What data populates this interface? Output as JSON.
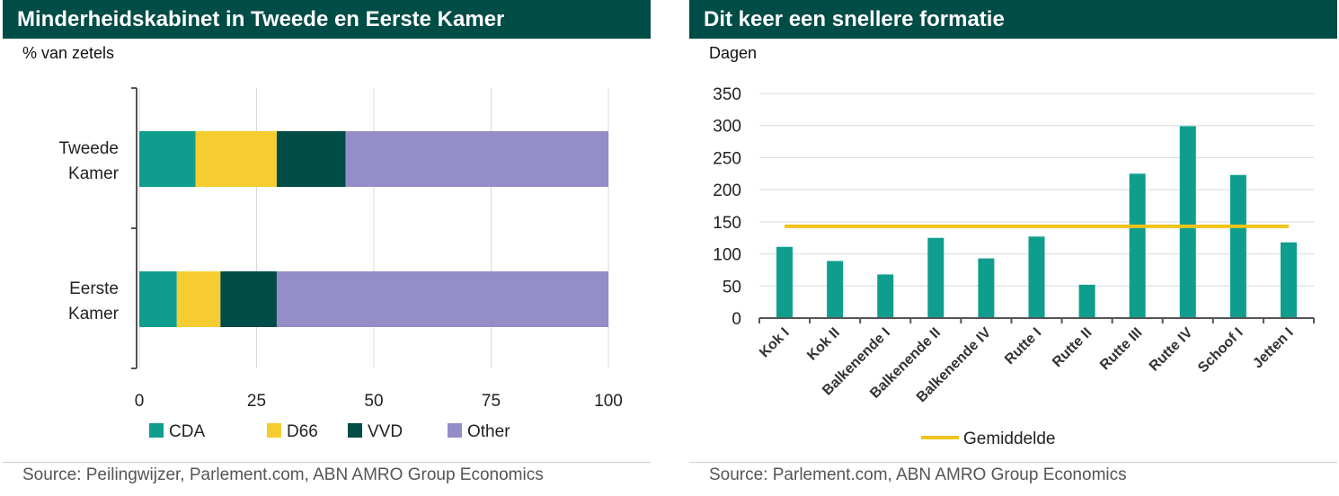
{
  "charts": {
    "left": {
      "title": "Minderheidskabinet in Tweede en Eerste Kamer",
      "unit": "% van zetels",
      "source": "Source: Peilingwijzer, Parlement.com, ABN AMRO Group Economics"
    },
    "right": {
      "title": "Dit keer een snellere formatie",
      "unit": "Dagen",
      "source": "Source: Parlement.com, ABN AMRO Group Economics"
    }
  },
  "colors": {
    "header_bg": "#004c46",
    "CDA": "#0f9e8e",
    "D66": "#f5cd31",
    "VVD": "#004c46",
    "Other": "#948dc8",
    "bar": "#0f9e8e",
    "average_line": "#efc31a"
  },
  "chart_data": [
    {
      "type": "bar",
      "orientation": "horizontal",
      "stacked": true,
      "title": "Minderheidskabinet in Tweede en Eerste Kamer",
      "ylabel": "% van zetels",
      "categories": [
        [
          "Tweede",
          "Kamer"
        ],
        [
          "Eerste",
          "Kamer"
        ]
      ],
      "series": [
        {
          "name": "CDA",
          "values": [
            12,
            8
          ]
        },
        {
          "name": "D66",
          "values": [
            17.3,
            9.3
          ]
        },
        {
          "name": "VVD",
          "values": [
            14.7,
            12
          ]
        },
        {
          "name": "Other",
          "values": [
            56,
            70.7
          ]
        }
      ],
      "xlim": [
        0,
        100
      ],
      "xticks": [
        "0",
        "25",
        "50",
        "75",
        "100"
      ],
      "grid": true,
      "legend": "bottom"
    },
    {
      "type": "bar",
      "title": "Dit keer een snellere formatie",
      "ylabel": "Dagen",
      "categories": [
        "Kok I",
        "Kok II",
        "Balkenende I",
        "Balkenende II",
        "Balkenende IV",
        "Rutte I",
        "Rutte II",
        "Rutte III",
        "Rutte IV",
        "Schoof I",
        "Jetten I"
      ],
      "series": [
        {
          "name": "Dagen",
          "values": [
            111,
            89,
            68,
            125,
            93,
            127,
            52,
            225,
            299,
            223,
            118
          ]
        }
      ],
      "reference_line": {
        "name": "Gemiddelde",
        "value": 143
      },
      "ylim": [
        0,
        350
      ],
      "yticks": [
        "0",
        "50",
        "100",
        "150",
        "200",
        "250",
        "300",
        "350"
      ],
      "grid": true,
      "legend": "bottom"
    }
  ]
}
